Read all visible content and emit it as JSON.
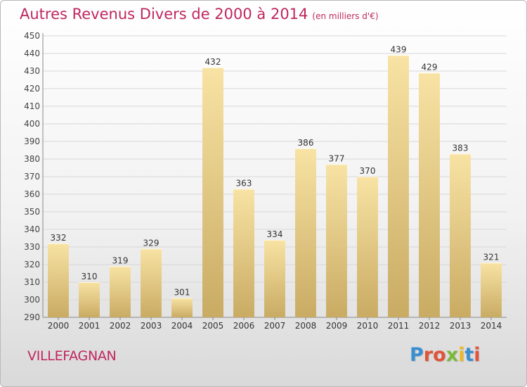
{
  "header": {
    "title": "Autres Revenus Divers de 2000 à 2014",
    "subtitle": "(en milliers d'€)"
  },
  "footer": {
    "location": "VILLEFAGNAN",
    "logo": [
      "P",
      "r",
      "o",
      "x",
      "i",
      "t",
      "i"
    ]
  },
  "colors": {
    "title": "#c0265f",
    "bar_light": "#f8e3a4",
    "bar_dark": "#c9ab63",
    "grid": "#d8d8d8",
    "axis": "#888888",
    "logo": [
      "#3a8fd0",
      "#e0543a",
      "#e0543a",
      "#7bb83a",
      "#f0b820",
      "#3a8fd0",
      "#e0543a"
    ]
  },
  "chart_data": {
    "type": "bar",
    "title": "Autres Revenus Divers de 2000 à 2014",
    "subtitle": "(en milliers d'€)",
    "categories": [
      "2000",
      "2001",
      "2002",
      "2003",
      "2004",
      "2005",
      "2006",
      "2007",
      "2008",
      "2009",
      "2010",
      "2011",
      "2012",
      "2013",
      "2014"
    ],
    "values": [
      332,
      310,
      319,
      329,
      301,
      432,
      363,
      334,
      386,
      377,
      370,
      439,
      429,
      383,
      321
    ],
    "ylim": [
      290,
      450
    ],
    "yticks": [
      290,
      300,
      310,
      320,
      330,
      340,
      350,
      360,
      370,
      380,
      390,
      400,
      410,
      420,
      430,
      440,
      450
    ],
    "grid": true,
    "data_labels": true
  }
}
